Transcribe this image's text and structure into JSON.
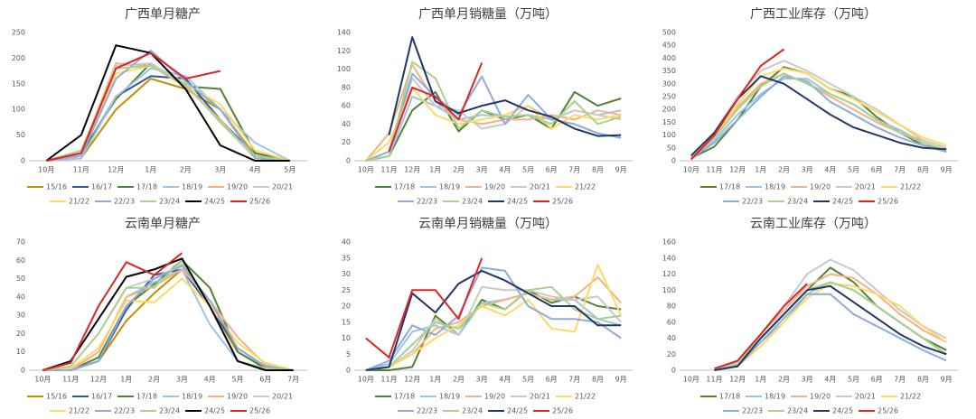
{
  "chart_data": [
    {
      "type": "line",
      "title": "广西单月糖产",
      "grid": false,
      "categories": [
        "10月",
        "11月",
        "12月",
        "1月",
        "2月",
        "3月",
        "4月",
        "5月"
      ],
      "ylim": [
        0,
        250
      ],
      "yticks": [
        0,
        50,
        100,
        150,
        200,
        250
      ],
      "series": [
        {
          "name": "15/16",
          "color": "#bf9000",
          "values": [
            0,
            5,
            100,
            160,
            140,
            100,
            10,
            0
          ]
        },
        {
          "name": "16/17",
          "color": "#2f5597",
          "values": [
            0,
            10,
            125,
            165,
            160,
            80,
            10,
            0
          ]
        },
        {
          "name": "17/18",
          "color": "#548235",
          "values": [
            0,
            15,
            120,
            190,
            145,
            140,
            15,
            0
          ]
        },
        {
          "name": "18/19",
          "color": "#9dc3e6",
          "values": [
            0,
            5,
            125,
            180,
            165,
            100,
            35,
            0
          ]
        },
        {
          "name": "19/20",
          "color": "#f4b183",
          "values": [
            0,
            15,
            190,
            185,
            145,
            80,
            5,
            0
          ]
        },
        {
          "name": "20/21",
          "color": "#c9c9c9",
          "values": [
            0,
            10,
            185,
            190,
            150,
            75,
            5,
            0
          ]
        },
        {
          "name": "21/22",
          "color": "#ffd966",
          "values": [
            0,
            10,
            170,
            185,
            150,
            110,
            20,
            0
          ]
        },
        {
          "name": "22/23",
          "color": "#8faadc",
          "values": [
            0,
            10,
            160,
            215,
            155,
            100,
            5,
            0
          ]
        },
        {
          "name": "23/24",
          "color": "#a9d18e",
          "values": [
            0,
            20,
            180,
            185,
            150,
            75,
            10,
            0
          ]
        },
        {
          "name": "24/25",
          "color": "#000000",
          "values": [
            0,
            50,
            225,
            210,
            140,
            30,
            0,
            0
          ]
        },
        {
          "name": "25/26",
          "color": "#e02424",
          "values": [
            0,
            15,
            180,
            210,
            160,
            175,
            null,
            null
          ]
        }
      ]
    },
    {
      "type": "line",
      "title": "广西单月销糖量（万吨）",
      "grid": false,
      "categories": [
        "10月",
        "11月",
        "12月",
        "1月",
        "2月",
        "3月",
        "4月",
        "5月",
        "6月",
        "7月",
        "8月",
        "9月"
      ],
      "ylim": [
        0,
        140
      ],
      "yticks": [
        0,
        20,
        40,
        60,
        80,
        100,
        120,
        140
      ],
      "series": [
        {
          "name": "17/18",
          "color": "#548235",
          "values": [
            0,
            5,
            55,
            75,
            32,
            55,
            45,
            50,
            35,
            75,
            60,
            68
          ]
        },
        {
          "name": "18/19",
          "color": "#9dc3e6",
          "values": [
            0,
            5,
            70,
            60,
            45,
            50,
            48,
            50,
            45,
            55,
            50,
            55
          ]
        },
        {
          "name": "19/20",
          "color": "#f4b183",
          "values": [
            0,
            30,
            105,
            65,
            45,
            40,
            45,
            45,
            50,
            45,
            55,
            50
          ]
        },
        {
          "name": "20/21",
          "color": "#c9c9c9",
          "values": [
            0,
            10,
            90,
            60,
            55,
            35,
            40,
            60,
            45,
            55,
            50,
            45
          ]
        },
        {
          "name": "21/22",
          "color": "#ffd966",
          "values": [
            0,
            20,
            80,
            50,
            40,
            45,
            50,
            60,
            35,
            50,
            45,
            50
          ]
        },
        {
          "name": "22/23",
          "color": "#8faadc",
          "values": [
            0,
            10,
            95,
            70,
            50,
            92,
            40,
            72,
            45,
            40,
            30,
            25
          ]
        },
        {
          "name": "23/24",
          "color": "#a9d18e",
          "values": [
            0,
            5,
            108,
            90,
            35,
            55,
            48,
            50,
            40,
            65,
            40,
            48
          ]
        },
        {
          "name": "24/25",
          "color": "#203864",
          "values": [
            null,
            28,
            135,
            65,
            52,
            60,
            66,
            55,
            48,
            35,
            27,
            28
          ]
        },
        {
          "name": "25/26",
          "color": "#e02424",
          "values": [
            null,
            10,
            80,
            70,
            45,
            107,
            null,
            null,
            null,
            null,
            null,
            null
          ]
        }
      ]
    },
    {
      "type": "line",
      "title": "广西工业库存（万吨）",
      "grid": false,
      "categories": [
        "10月",
        "11月",
        "12月",
        "1月",
        "2月",
        "3月",
        "4月",
        "5月",
        "6月",
        "7月",
        "8月",
        "9月"
      ],
      "ylim": [
        0,
        500
      ],
      "yticks": [
        0,
        50,
        100,
        150,
        200,
        250,
        300,
        350,
        400,
        450,
        500
      ],
      "series": [
        {
          "name": "17/18",
          "color": "#548235",
          "values": [
            10,
            55,
            160,
            290,
            365,
            340,
            280,
            250,
            170,
            110,
            60,
            40
          ]
        },
        {
          "name": "18/19",
          "color": "#9dc3e6",
          "values": [
            5,
            80,
            180,
            260,
            320,
            320,
            260,
            220,
            160,
            120,
            70,
            40
          ]
        },
        {
          "name": "19/20",
          "color": "#f4b183",
          "values": [
            15,
            100,
            210,
            300,
            340,
            300,
            250,
            200,
            150,
            110,
            80,
            50
          ]
        },
        {
          "name": "20/21",
          "color": "#c9c9c9",
          "values": [
            20,
            110,
            250,
            350,
            390,
            350,
            300,
            250,
            200,
            140,
            80,
            50
          ]
        },
        {
          "name": "21/22",
          "color": "#ffd966",
          "values": [
            10,
            90,
            220,
            330,
            360,
            340,
            280,
            240,
            190,
            140,
            90,
            60
          ]
        },
        {
          "name": "22/23",
          "color": "#8faadc",
          "values": [
            10,
            70,
            160,
            250,
            330,
            310,
            230,
            180,
            130,
            90,
            60,
            35
          ]
        },
        {
          "name": "23/24",
          "color": "#a9d18e",
          "values": [
            10,
            90,
            200,
            290,
            340,
            300,
            260,
            220,
            160,
            110,
            70,
            40
          ]
        },
        {
          "name": "24/25",
          "color": "#203864",
          "values": [
            20,
            110,
            240,
            330,
            300,
            240,
            180,
            130,
            100,
            70,
            50,
            45
          ]
        },
        {
          "name": "25/26",
          "color": "#e02424",
          "values": [
            5,
            100,
            240,
            370,
            435,
            null,
            null,
            null,
            null,
            null,
            null,
            null
          ]
        }
      ]
    },
    {
      "type": "line",
      "title": "云南单月糖产",
      "grid": false,
      "categories": [
        "10月",
        "11月",
        "12月",
        "1月",
        "2月",
        "3月",
        "4月",
        "5月",
        "6月",
        "7月"
      ],
      "ylim": [
        0,
        70
      ],
      "yticks": [
        0,
        10,
        20,
        30,
        40,
        50,
        60,
        70
      ],
      "series": [
        {
          "name": "15/16",
          "color": "#bf9000",
          "values": [
            0,
            0,
            5,
            27,
            42,
            55,
            35,
            10,
            1,
            0
          ]
        },
        {
          "name": "16/17",
          "color": "#2f5597",
          "values": [
            0,
            0,
            5,
            33,
            52,
            55,
            35,
            12,
            2,
            0
          ]
        },
        {
          "name": "17/18",
          "color": "#548235",
          "values": [
            0,
            0,
            7,
            35,
            47,
            60,
            45,
            10,
            1,
            0
          ]
        },
        {
          "name": "18/19",
          "color": "#9dc3e6",
          "values": [
            0,
            0,
            10,
            40,
            48,
            55,
            25,
            5,
            1,
            0
          ]
        },
        {
          "name": "19/20",
          "color": "#f4b183",
          "values": [
            0,
            0,
            10,
            40,
            46,
            55,
            38,
            18,
            3,
            0
          ]
        },
        {
          "name": "20/21",
          "color": "#c9c9c9",
          "values": [
            0,
            2,
            20,
            45,
            50,
            58,
            35,
            5,
            1,
            0
          ]
        },
        {
          "name": "21/22",
          "color": "#ffd966",
          "values": [
            0,
            1,
            12,
            38,
            37,
            50,
            35,
            15,
            4,
            0
          ]
        },
        {
          "name": "22/23",
          "color": "#8faadc",
          "values": [
            0,
            0,
            5,
            35,
            50,
            57,
            38,
            12,
            2,
            0
          ]
        },
        {
          "name": "23/24",
          "color": "#a9d18e",
          "values": [
            0,
            2,
            20,
            45,
            45,
            60,
            35,
            5,
            1,
            0
          ]
        },
        {
          "name": "24/25",
          "color": "#000000",
          "values": [
            0,
            5,
            28,
            51,
            55,
            61,
            35,
            5,
            0,
            0
          ]
        },
        {
          "name": "25/26",
          "color": "#e02424",
          "values": [
            0,
            4,
            35,
            59,
            52,
            64,
            null,
            null,
            null,
            null
          ]
        }
      ]
    },
    {
      "type": "line",
      "title": "云南单月销糖量（万吨）",
      "grid": false,
      "categories": [
        "10月",
        "11月",
        "12月",
        "1月",
        "2月",
        "3月",
        "4月",
        "5月",
        "6月",
        "7月",
        "8月",
        "9月"
      ],
      "ylim": [
        0,
        40
      ],
      "yticks": [
        0,
        5,
        10,
        15,
        20,
        25,
        30,
        35,
        40
      ],
      "series": [
        {
          "name": "17/18",
          "color": "#548235",
          "values": [
            0,
            0,
            1,
            17,
            11,
            22,
            19,
            25,
            21,
            23,
            20,
            19
          ]
        },
        {
          "name": "18/19",
          "color": "#9dc3e6",
          "values": [
            0,
            2,
            12,
            14,
            11,
            21,
            22,
            24,
            22,
            22,
            16,
            14
          ]
        },
        {
          "name": "19/20",
          "color": "#f4b183",
          "values": [
            0,
            1,
            5,
            13,
            15,
            20,
            22,
            24,
            22,
            23,
            29,
            21
          ]
        },
        {
          "name": "20/21",
          "color": "#c9c9c9",
          "values": [
            0,
            1,
            6,
            16,
            11,
            26,
            25,
            25,
            23,
            22,
            23,
            15
          ]
        },
        {
          "name": "21/22",
          "color": "#ffd966",
          "values": [
            0,
            1,
            5,
            10,
            14,
            20,
            17,
            22,
            13,
            12,
            33,
            17
          ]
        },
        {
          "name": "22/23",
          "color": "#8faadc",
          "values": [
            0,
            3,
            14,
            11,
            17,
            32,
            31,
            20,
            16,
            16,
            15,
            10
          ]
        },
        {
          "name": "23/24",
          "color": "#a9d18e",
          "values": [
            0,
            1,
            8,
            15,
            13,
            21,
            19,
            25,
            26,
            19,
            16,
            17
          ]
        },
        {
          "name": "24/25",
          "color": "#203864",
          "values": [
            0,
            1,
            24,
            18,
            27,
            31,
            28,
            24,
            20,
            20,
            14,
            14
          ]
        },
        {
          "name": "25/26",
          "color": "#e02424",
          "values": [
            10,
            4,
            25,
            25,
            16,
            35,
            null,
            null,
            null,
            null,
            null,
            null
          ]
        }
      ]
    },
    {
      "type": "line",
      "title": "云南工业库存（万吨）",
      "grid": false,
      "categories": [
        "10月",
        "11月",
        "12月",
        "1月",
        "2月",
        "3月",
        "4月",
        "5月",
        "6月",
        "7月",
        "8月",
        "9月"
      ],
      "ylim": [
        0,
        160
      ],
      "yticks": [
        0,
        20,
        40,
        60,
        80,
        100,
        120,
        140,
        160
      ],
      "series": [
        {
          "name": "17/18",
          "color": "#548235",
          "values": [
            null,
            0,
            6,
            40,
            70,
            100,
            128,
            110,
            80,
            60,
            40,
            25
          ]
        },
        {
          "name": "18/19",
          "color": "#9dc3e6",
          "values": [
            null,
            0,
            5,
            35,
            60,
            95,
            110,
            100,
            80,
            60,
            40,
            20
          ]
        },
        {
          "name": "19/20",
          "color": "#f4b183",
          "values": [
            null,
            1,
            10,
            45,
            75,
            105,
            120,
            115,
            95,
            70,
            50,
            35
          ]
        },
        {
          "name": "20/21",
          "color": "#c9c9c9",
          "values": [
            null,
            0,
            8,
            45,
            80,
            120,
            138,
            125,
            100,
            75,
            55,
            40
          ]
        },
        {
          "name": "21/22",
          "color": "#ffd966",
          "values": [
            null,
            0,
            5,
            30,
            60,
            90,
            108,
            105,
            95,
            80,
            55,
            35
          ]
        },
        {
          "name": "22/23",
          "color": "#8faadc",
          "values": [
            null,
            1,
            5,
            35,
            65,
            95,
            95,
            70,
            55,
            40,
            25,
            12
          ]
        },
        {
          "name": "23/24",
          "color": "#a9d18e",
          "values": [
            null,
            1,
            10,
            40,
            70,
            100,
            110,
            100,
            80,
            60,
            40,
            20
          ]
        },
        {
          "name": "24/25",
          "color": "#203864",
          "values": [
            null,
            0,
            5,
            40,
            70,
            100,
            105,
            85,
            65,
            45,
            30,
            20
          ]
        },
        {
          "name": "25/26",
          "color": "#e02424",
          "values": [
            null,
            2,
            12,
            45,
            80,
            108,
            null,
            null,
            null,
            null,
            null,
            null
          ]
        }
      ]
    }
  ]
}
